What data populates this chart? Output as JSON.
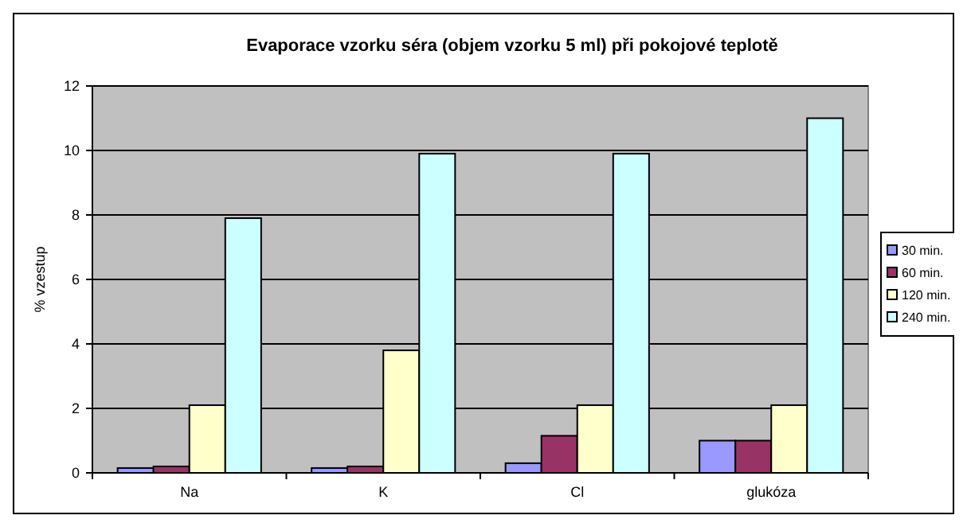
{
  "chart_data": {
    "type": "bar",
    "title": "Evaporace vzorku séra (objem vzorku 5 ml) při pokojové teplotě",
    "ylabel": "% vzestup",
    "categories": [
      "Na",
      "K",
      "Cl",
      "glukóza"
    ],
    "series": [
      {
        "name": "30 min.",
        "color": "#9999ff",
        "values": [
          0.15,
          0.15,
          0.3,
          1.0
        ]
      },
      {
        "name": "60 min.",
        "color": "#993366",
        "values": [
          0.2,
          0.2,
          1.15,
          1.0
        ]
      },
      {
        "name": "120 min.",
        "color": "#ffffcc",
        "values": [
          2.1,
          3.8,
          2.1,
          2.1
        ]
      },
      {
        "name": "240 min.",
        "color": "#ccffff",
        "values": [
          7.9,
          9.9,
          9.9,
          11.0
        ]
      }
    ],
    "ylim": [
      0,
      12
    ],
    "yticks": [
      0,
      2,
      4,
      6,
      8,
      10,
      12
    ],
    "grid": "y",
    "legend": "right"
  }
}
